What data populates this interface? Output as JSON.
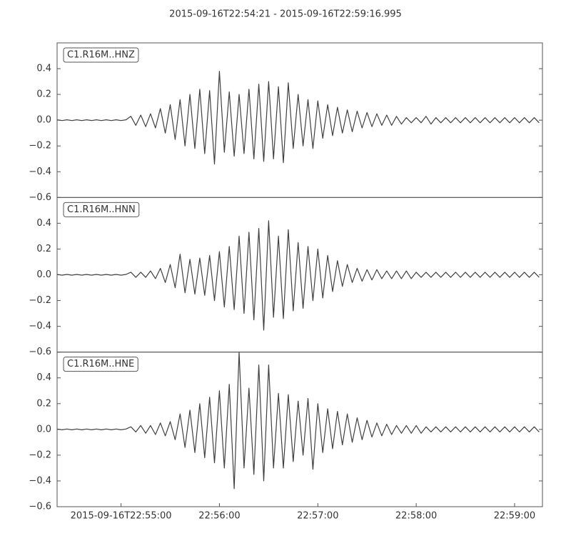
{
  "title": "2015-09-16T22:54:21  -  2015-09-16T22:59:16.995",
  "chart_data": [
    {
      "type": "line",
      "label": "C1.R16M..HNZ",
      "ylim": [
        -0.6,
        0.6
      ],
      "yticks": [
        {
          "value": -0.6,
          "label": "−0.6"
        },
        {
          "value": -0.4,
          "label": "−0.4"
        },
        {
          "value": -0.2,
          "label": "−0.2"
        },
        {
          "value": 0.0,
          "label": "0.0"
        },
        {
          "value": 0.2,
          "label": "0.2"
        },
        {
          "value": 0.4,
          "label": "0.4"
        }
      ],
      "xlim": [
        "22:54:21",
        "22:59:16.995"
      ],
      "x": [
        "22:54:21",
        "22:54:24",
        "22:54:27",
        "22:54:30",
        "22:54:33",
        "22:54:36",
        "22:54:39",
        "22:54:42",
        "22:54:45",
        "22:54:48",
        "22:54:51",
        "22:54:54",
        "22:54:57",
        "22:55:00",
        "22:55:03",
        "22:55:06",
        "22:55:09",
        "22:55:12",
        "22:55:15",
        "22:55:18",
        "22:55:21",
        "22:55:24",
        "22:55:27",
        "22:55:30",
        "22:55:33",
        "22:55:36",
        "22:55:39",
        "22:55:42",
        "22:55:45",
        "22:55:48",
        "22:55:51",
        "22:55:54",
        "22:55:57",
        "22:56:00",
        "22:56:03",
        "22:56:06",
        "22:56:09",
        "22:56:12",
        "22:56:15",
        "22:56:18",
        "22:56:21",
        "22:56:24",
        "22:56:27",
        "22:56:30",
        "22:56:33",
        "22:56:36",
        "22:56:39",
        "22:56:42",
        "22:56:45",
        "22:56:48",
        "22:56:51",
        "22:56:54",
        "22:56:57",
        "22:57:00",
        "22:57:03",
        "22:57:06",
        "22:57:09",
        "22:57:12",
        "22:57:15",
        "22:57:18",
        "22:57:21",
        "22:57:24",
        "22:57:27",
        "22:57:30",
        "22:57:33",
        "22:57:36",
        "22:57:39",
        "22:57:42",
        "22:57:45",
        "22:57:48",
        "22:57:51",
        "22:57:54",
        "22:57:57",
        "22:58:00",
        "22:58:03",
        "22:58:06",
        "22:58:09",
        "22:58:12",
        "22:58:15",
        "22:58:18",
        "22:58:21",
        "22:58:24",
        "22:58:27",
        "22:58:30",
        "22:58:33",
        "22:58:36",
        "22:58:39",
        "22:58:42",
        "22:58:45",
        "22:58:48",
        "22:58:51",
        "22:58:54",
        "22:58:57",
        "22:59:00",
        "22:59:03",
        "22:59:06",
        "22:59:09",
        "22:59:12",
        "22:59:15"
      ],
      "series": [
        {
          "color": "#404040",
          "values": [
            0.003,
            -0.003,
            0.003,
            -0.003,
            0.003,
            -0.003,
            0.003,
            -0.003,
            0.003,
            -0.003,
            0.003,
            -0.003,
            0.003,
            -0.003,
            0.003,
            0.03,
            -0.04,
            0.04,
            -0.05,
            0.05,
            -0.06,
            0.09,
            -0.1,
            0.12,
            -0.15,
            0.16,
            -0.2,
            0.2,
            -0.22,
            0.24,
            -0.26,
            0.23,
            -0.34,
            0.38,
            -0.25,
            0.22,
            -0.28,
            0.2,
            -0.26,
            0.24,
            -0.3,
            0.28,
            -0.32,
            0.3,
            -0.3,
            0.26,
            -0.33,
            0.29,
            -0.22,
            0.2,
            -0.2,
            0.16,
            -0.22,
            0.15,
            -0.14,
            0.12,
            -0.12,
            0.1,
            -0.1,
            0.08,
            -0.09,
            0.07,
            -0.06,
            0.06,
            -0.05,
            0.05,
            -0.04,
            0.04,
            -0.04,
            0.03,
            -0.03,
            0.02,
            -0.02,
            0.02,
            -0.02,
            0.03,
            -0.03,
            0.02,
            -0.02,
            0.02,
            -0.02,
            0.02,
            -0.02,
            0.02,
            -0.02,
            0.02,
            -0.02,
            0.02,
            -0.02,
            0.02,
            -0.02,
            0.02,
            -0.02,
            0.02,
            -0.02,
            0.02,
            -0.02,
            0.02,
            -0.02
          ]
        }
      ]
    },
    {
      "type": "line",
      "label": "C1.R16M..HNN",
      "ylim": [
        -0.6,
        0.6
      ],
      "yticks": [
        {
          "value": -0.6,
          "label": "−0.6"
        },
        {
          "value": -0.4,
          "label": "−0.4"
        },
        {
          "value": -0.2,
          "label": "−0.2"
        },
        {
          "value": 0.0,
          "label": "0.0"
        },
        {
          "value": 0.2,
          "label": "0.2"
        },
        {
          "value": 0.4,
          "label": "0.4"
        }
      ],
      "xlim": [
        "22:54:21",
        "22:59:16.995"
      ],
      "x": [
        "22:54:21",
        "22:54:24",
        "22:54:27",
        "22:54:30",
        "22:54:33",
        "22:54:36",
        "22:54:39",
        "22:54:42",
        "22:54:45",
        "22:54:48",
        "22:54:51",
        "22:54:54",
        "22:54:57",
        "22:55:00",
        "22:55:03",
        "22:55:06",
        "22:55:09",
        "22:55:12",
        "22:55:15",
        "22:55:18",
        "22:55:21",
        "22:55:24",
        "22:55:27",
        "22:55:30",
        "22:55:33",
        "22:55:36",
        "22:55:39",
        "22:55:42",
        "22:55:45",
        "22:55:48",
        "22:55:51",
        "22:55:54",
        "22:55:57",
        "22:56:00",
        "22:56:03",
        "22:56:06",
        "22:56:09",
        "22:56:12",
        "22:56:15",
        "22:56:18",
        "22:56:21",
        "22:56:24",
        "22:56:27",
        "22:56:30",
        "22:56:33",
        "22:56:36",
        "22:56:39",
        "22:56:42",
        "22:56:45",
        "22:56:48",
        "22:56:51",
        "22:56:54",
        "22:56:57",
        "22:57:00",
        "22:57:03",
        "22:57:06",
        "22:57:09",
        "22:57:12",
        "22:57:15",
        "22:57:18",
        "22:57:21",
        "22:57:24",
        "22:57:27",
        "22:57:30",
        "22:57:33",
        "22:57:36",
        "22:57:39",
        "22:57:42",
        "22:57:45",
        "22:57:48",
        "22:57:51",
        "22:57:54",
        "22:57:57",
        "22:58:00",
        "22:58:03",
        "22:58:06",
        "22:58:09",
        "22:58:12",
        "22:58:15",
        "22:58:18",
        "22:58:21",
        "22:58:24",
        "22:58:27",
        "22:58:30",
        "22:58:33",
        "22:58:36",
        "22:58:39",
        "22:58:42",
        "22:58:45",
        "22:58:48",
        "22:58:51",
        "22:58:54",
        "22:58:57",
        "22:59:00",
        "22:59:03",
        "22:59:06",
        "22:59:09",
        "22:59:12",
        "22:59:15"
      ],
      "series": [
        {
          "color": "#404040",
          "values": [
            0.003,
            -0.003,
            0.003,
            -0.003,
            0.003,
            -0.003,
            0.003,
            -0.003,
            0.003,
            -0.003,
            0.003,
            -0.003,
            0.003,
            -0.003,
            0.003,
            0.02,
            -0.02,
            0.02,
            -0.02,
            0.03,
            -0.03,
            0.05,
            -0.06,
            0.08,
            -0.1,
            0.16,
            -0.14,
            0.12,
            -0.15,
            0.13,
            -0.16,
            0.15,
            -0.2,
            0.18,
            -0.25,
            0.22,
            -0.27,
            0.3,
            -0.3,
            0.33,
            -0.35,
            0.36,
            -0.43,
            0.42,
            -0.33,
            0.3,
            -0.34,
            0.35,
            -0.28,
            0.25,
            -0.26,
            0.22,
            -0.2,
            0.2,
            -0.18,
            0.15,
            -0.13,
            0.11,
            -0.09,
            0.08,
            -0.06,
            0.05,
            -0.05,
            0.04,
            -0.04,
            0.04,
            -0.03,
            0.03,
            -0.03,
            0.03,
            -0.03,
            0.03,
            -0.03,
            0.02,
            -0.02,
            0.02,
            -0.02,
            0.02,
            -0.02,
            0.02,
            -0.02,
            0.02,
            -0.02,
            0.02,
            -0.02,
            0.02,
            -0.02,
            0.02,
            -0.02,
            0.02,
            -0.02,
            0.02,
            -0.02,
            0.02,
            -0.02,
            0.02,
            -0.02,
            0.02,
            -0.02
          ]
        }
      ]
    },
    {
      "type": "line",
      "label": "C1.R16M..HNE",
      "ylim": [
        -0.6,
        0.6
      ],
      "yticks": [
        {
          "value": -0.6,
          "label": "−0.6"
        },
        {
          "value": -0.4,
          "label": "−0.4"
        },
        {
          "value": -0.2,
          "label": "−0.2"
        },
        {
          "value": 0.0,
          "label": "0.0"
        },
        {
          "value": 0.2,
          "label": "0.2"
        },
        {
          "value": 0.4,
          "label": "0.4"
        }
      ],
      "xlim": [
        "22:54:21",
        "22:59:16.995"
      ],
      "xticks": [
        {
          "value": "22:55:00",
          "label": "2015-09-16T22:55:00"
        },
        {
          "value": "22:56:00",
          "label": "22:56:00"
        },
        {
          "value": "22:57:00",
          "label": "22:57:00"
        },
        {
          "value": "22:58:00",
          "label": "22:58:00"
        },
        {
          "value": "22:59:00",
          "label": "22:59:00"
        }
      ],
      "x": [
        "22:54:21",
        "22:54:24",
        "22:54:27",
        "22:54:30",
        "22:54:33",
        "22:54:36",
        "22:54:39",
        "22:54:42",
        "22:54:45",
        "22:54:48",
        "22:54:51",
        "22:54:54",
        "22:54:57",
        "22:55:00",
        "22:55:03",
        "22:55:06",
        "22:55:09",
        "22:55:12",
        "22:55:15",
        "22:55:18",
        "22:55:21",
        "22:55:24",
        "22:55:27",
        "22:55:30",
        "22:55:33",
        "22:55:36",
        "22:55:39",
        "22:55:42",
        "22:55:45",
        "22:55:48",
        "22:55:51",
        "22:55:54",
        "22:55:57",
        "22:56:00",
        "22:56:03",
        "22:56:06",
        "22:56:09",
        "22:56:12",
        "22:56:15",
        "22:56:18",
        "22:56:21",
        "22:56:24",
        "22:56:27",
        "22:56:30",
        "22:56:33",
        "22:56:36",
        "22:56:39",
        "22:56:42",
        "22:56:45",
        "22:56:48",
        "22:56:51",
        "22:56:54",
        "22:56:57",
        "22:57:00",
        "22:57:03",
        "22:57:06",
        "22:57:09",
        "22:57:12",
        "22:57:15",
        "22:57:18",
        "22:57:21",
        "22:57:24",
        "22:57:27",
        "22:57:30",
        "22:57:33",
        "22:57:36",
        "22:57:39",
        "22:57:42",
        "22:57:45",
        "22:57:48",
        "22:57:51",
        "22:57:54",
        "22:57:57",
        "22:58:00",
        "22:58:03",
        "22:58:06",
        "22:58:09",
        "22:58:12",
        "22:58:15",
        "22:58:18",
        "22:58:21",
        "22:58:24",
        "22:58:27",
        "22:58:30",
        "22:58:33",
        "22:58:36",
        "22:58:39",
        "22:58:42",
        "22:58:45",
        "22:58:48",
        "22:58:51",
        "22:58:54",
        "22:58:57",
        "22:59:00",
        "22:59:03",
        "22:59:06",
        "22:59:09",
        "22:59:12",
        "22:59:15"
      ],
      "series": [
        {
          "color": "#404040",
          "values": [
            0.003,
            -0.003,
            0.003,
            -0.003,
            0.003,
            -0.003,
            0.003,
            -0.003,
            0.003,
            -0.003,
            0.003,
            -0.003,
            0.003,
            -0.003,
            0.003,
            0.02,
            -0.02,
            0.03,
            -0.03,
            0.03,
            -0.04,
            0.05,
            -0.05,
            0.06,
            -0.08,
            0.12,
            -0.14,
            0.15,
            -0.18,
            0.2,
            -0.22,
            0.25,
            -0.26,
            0.3,
            -0.3,
            0.35,
            -0.46,
            0.6,
            -0.3,
            0.32,
            -0.35,
            0.5,
            -0.4,
            0.5,
            -0.3,
            0.28,
            -0.3,
            0.27,
            -0.25,
            0.22,
            -0.2,
            0.24,
            -0.31,
            0.2,
            -0.18,
            0.16,
            -0.15,
            0.14,
            -0.12,
            0.12,
            -0.1,
            0.09,
            -0.08,
            0.07,
            -0.06,
            0.05,
            -0.05,
            0.04,
            -0.04,
            0.03,
            -0.03,
            0.03,
            -0.03,
            0.03,
            -0.03,
            0.02,
            -0.02,
            0.02,
            -0.02,
            0.02,
            -0.02,
            0.02,
            -0.02,
            0.02,
            -0.02,
            0.02,
            -0.02,
            0.02,
            -0.02,
            0.02,
            -0.02,
            0.02,
            -0.02,
            0.02,
            -0.02,
            0.02,
            -0.02,
            0.02,
            -0.02
          ]
        }
      ]
    }
  ]
}
